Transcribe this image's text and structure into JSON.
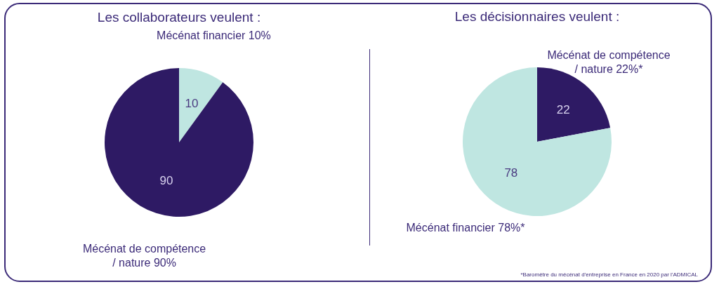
{
  "chart_data": [
    {
      "type": "pie",
      "title": "Les collaborateurs veulent :",
      "categories": [
        "Mécénat financier 10%",
        "Mécénat de compétence / nature 90%"
      ],
      "values": [
        10,
        90
      ],
      "colors": [
        "#bfe6e1",
        "#2e1a64"
      ],
      "data_labels": true
    },
    {
      "type": "pie",
      "title": "Les décisionnaires veulent :",
      "categories": [
        "Mécénat de compétence / nature 22%*",
        "Mécénat financier 78%*"
      ],
      "values": [
        22,
        78
      ],
      "colors": [
        "#2e1a64",
        "#bfe6e1"
      ],
      "data_labels": true,
      "annotations": [
        "*Baromètre du mécénat d'entreprise en France en 2020 par l'ADMICAL"
      ]
    }
  ]
}
